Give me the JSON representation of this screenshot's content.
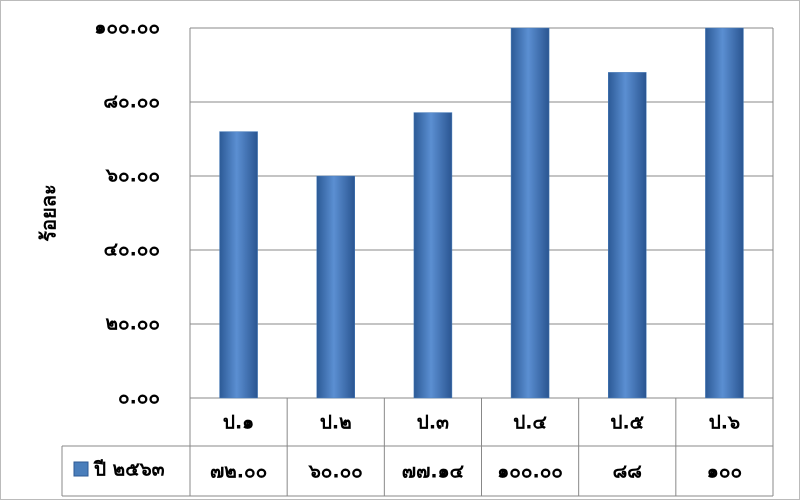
{
  "chart_data": {
    "type": "bar",
    "y_label": "ร้อยละ",
    "categories": [
      "ป.๑",
      "ป.๒",
      "ป.๓",
      "ป.๔",
      "ป.๕",
      "ป.๖"
    ],
    "series": [
      {
        "name": "ปี ๒๕๖๓",
        "color": "#4a7ebb",
        "values": [
          72,
          60,
          77.14,
          100,
          88,
          100
        ],
        "value_labels": [
          "๗๒.๐๐",
          "๖๐.๐๐",
          "๗๗.๑๔",
          "๑๐๐.๐๐",
          "๘๘",
          "๑๐๐"
        ]
      }
    ],
    "ylim": [
      0,
      100
    ],
    "yticks": [
      {
        "value": 0,
        "label": "๐.๐๐"
      },
      {
        "value": 20,
        "label": "๒๐.๐๐"
      },
      {
        "value": 40,
        "label": "๔๐.๐๐"
      },
      {
        "value": 60,
        "label": "๖๐.๐๐"
      },
      {
        "value": 80,
        "label": "๘๐.๐๐"
      },
      {
        "value": 100,
        "label": "๑๐๐.๐๐"
      }
    ],
    "grid": true
  }
}
